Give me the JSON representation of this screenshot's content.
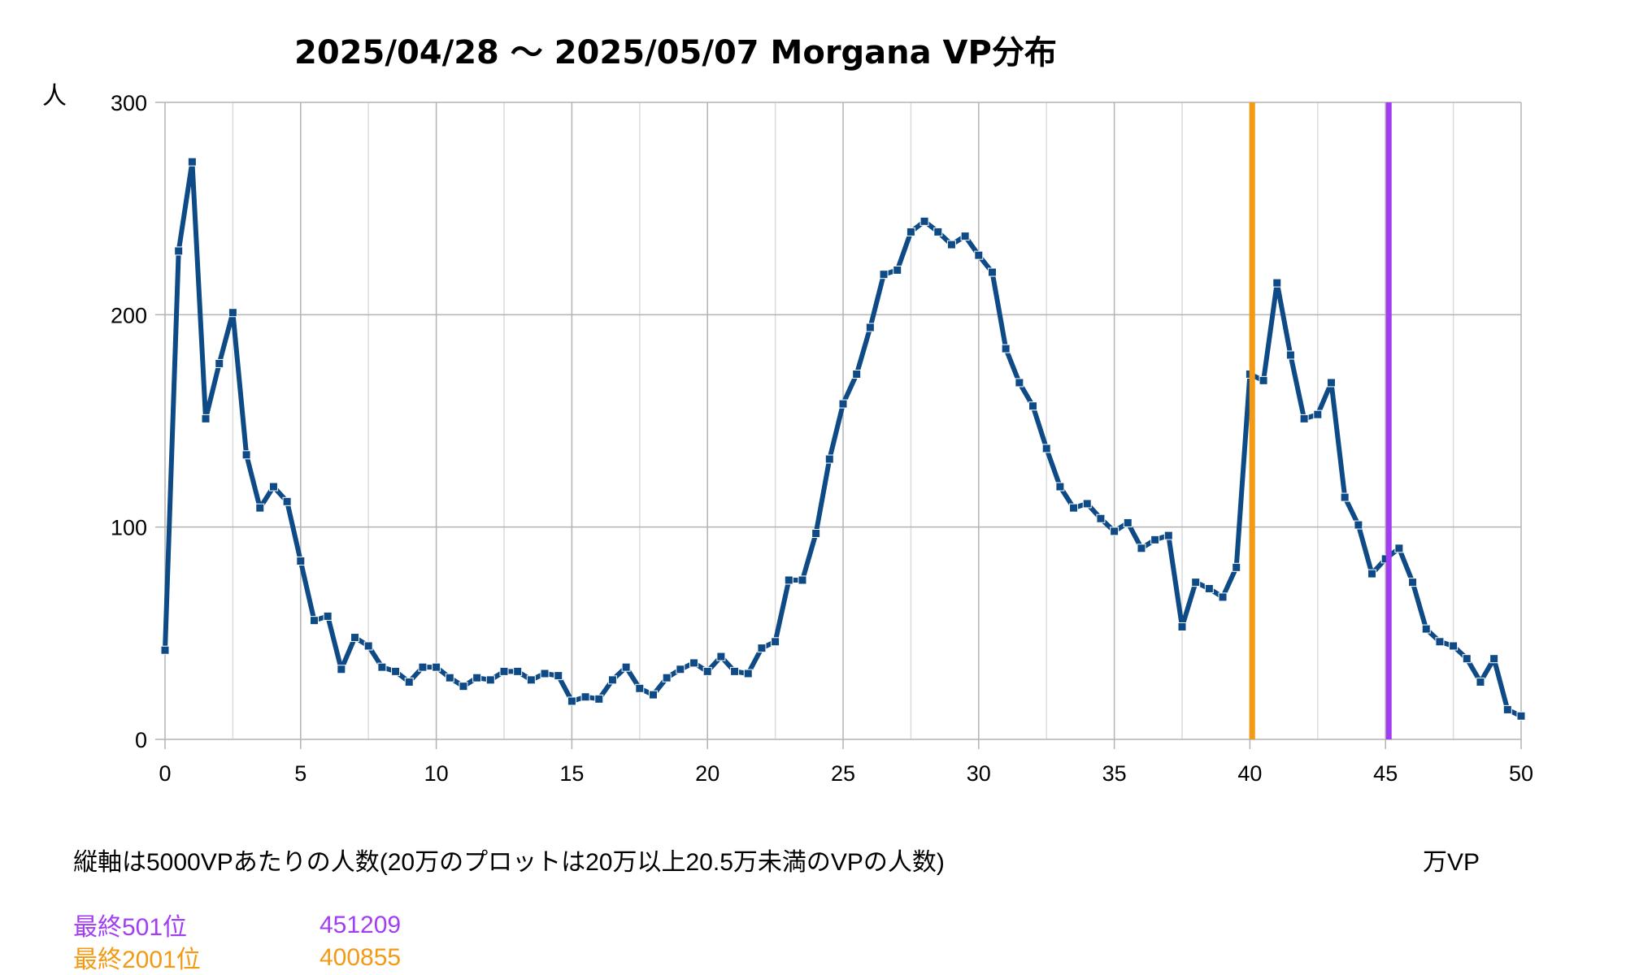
{
  "chart_data": {
    "type": "line",
    "title": "2025/04/28 ～ 2025/05/07 Morgana VP分布",
    "ylabel": "人",
    "xlabel": "万VP",
    "xlim": [
      0,
      50
    ],
    "ylim": [
      0,
      300
    ],
    "x_ticks": [
      0,
      5,
      10,
      15,
      20,
      25,
      30,
      35,
      40,
      45,
      50
    ],
    "y_ticks": [
      0,
      100,
      200,
      300
    ],
    "grid": true,
    "series": [
      {
        "color": "#0d4a86",
        "x": [
          0,
          0.5,
          1,
          1.5,
          2,
          2.5,
          3,
          3.5,
          4,
          4.5,
          5,
          5.5,
          6,
          6.5,
          7,
          7.5,
          8,
          8.5,
          9,
          9.5,
          10,
          10.5,
          11,
          11.5,
          12,
          12.5,
          13,
          13.5,
          14,
          14.5,
          15,
          15.5,
          16,
          16.5,
          17,
          17.5,
          18,
          18.5,
          19,
          19.5,
          20,
          20.5,
          21,
          21.5,
          22,
          22.5,
          23,
          23.5,
          24,
          24.5,
          25,
          25.5,
          26,
          26.5,
          27,
          27.5,
          28,
          28.5,
          29,
          29.5,
          30,
          30.5,
          31,
          31.5,
          32,
          32.5,
          33,
          33.5,
          34,
          34.5,
          35,
          35.5,
          36,
          36.5,
          37,
          37.5,
          38,
          38.5,
          39,
          39.5,
          40,
          40.5,
          41,
          41.5,
          42,
          42.5,
          43,
          43.5,
          44,
          44.5,
          45,
          45.5,
          46,
          46.5,
          47,
          47.5,
          48,
          48.5,
          49,
          49.5,
          50
        ],
        "y": [
          42,
          230,
          272,
          151,
          177,
          201,
          134,
          109,
          119,
          112,
          84,
          56,
          58,
          33,
          48,
          44,
          34,
          32,
          27,
          34,
          34,
          29,
          25,
          29,
          28,
          32,
          32,
          28,
          31,
          30,
          18,
          20,
          19,
          28,
          34,
          24,
          21,
          29,
          33,
          36,
          32,
          39,
          32,
          31,
          43,
          46,
          75,
          75,
          97,
          132,
          158,
          172,
          194,
          219,
          221,
          239,
          244,
          239,
          233,
          237,
          228,
          220,
          184,
          168,
          157,
          137,
          119,
          109,
          111,
          104,
          98,
          102,
          90,
          94,
          96,
          53,
          74,
          71,
          67,
          81,
          172,
          169,
          215,
          181,
          151,
          153,
          168,
          114,
          101,
          78,
          85,
          90,
          74,
          52,
          46,
          44,
          38,
          27,
          38,
          14,
          11
        ]
      }
    ],
    "markers": [
      {
        "label": "最終501位",
        "value": "451209",
        "x": 45.1209,
        "color": "#a23ef2"
      },
      {
        "label": "最終2001位",
        "value": "400855",
        "x": 40.0855,
        "color": "#f39a14"
      }
    ],
    "note": "縦軸は5000VPあたりの人数(20万のプロットは20万以上20.5万未満のVPの人数)"
  }
}
